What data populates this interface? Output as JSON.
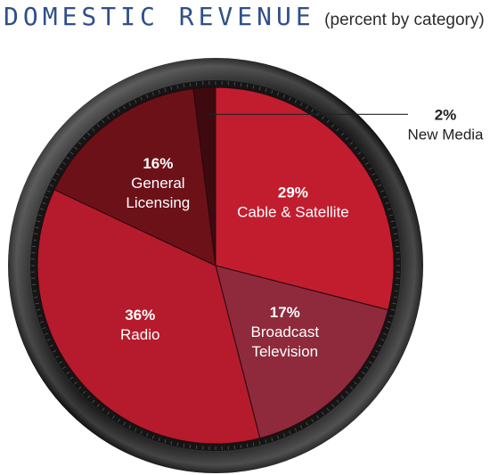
{
  "header": {
    "title": "DOMESTIC REVENUE",
    "subtitle": "(percent by category)"
  },
  "chart_data": {
    "type": "pie",
    "title": "DOMESTIC REVENUE",
    "subtitle": "(percent by category)",
    "slices": [
      {
        "pct_label": "29%",
        "label_lines": [
          "Cable & Satellite"
        ],
        "value": 29,
        "color": "#c21d2f"
      },
      {
        "pct_label": "17%",
        "label_lines": [
          "Broadcast",
          "Television"
        ],
        "value": 17,
        "color": "#8e2a3c"
      },
      {
        "pct_label": "36%",
        "label_lines": [
          "Radio"
        ],
        "value": 36,
        "color": "#b51b2c"
      },
      {
        "pct_label": "16%",
        "label_lines": [
          "General",
          "Licensing"
        ],
        "value": 16,
        "color": "#6d1119"
      },
      {
        "pct_label": "2%",
        "label_lines": [
          "New Media"
        ],
        "value": 2,
        "color": "#3e0a10"
      }
    ]
  }
}
